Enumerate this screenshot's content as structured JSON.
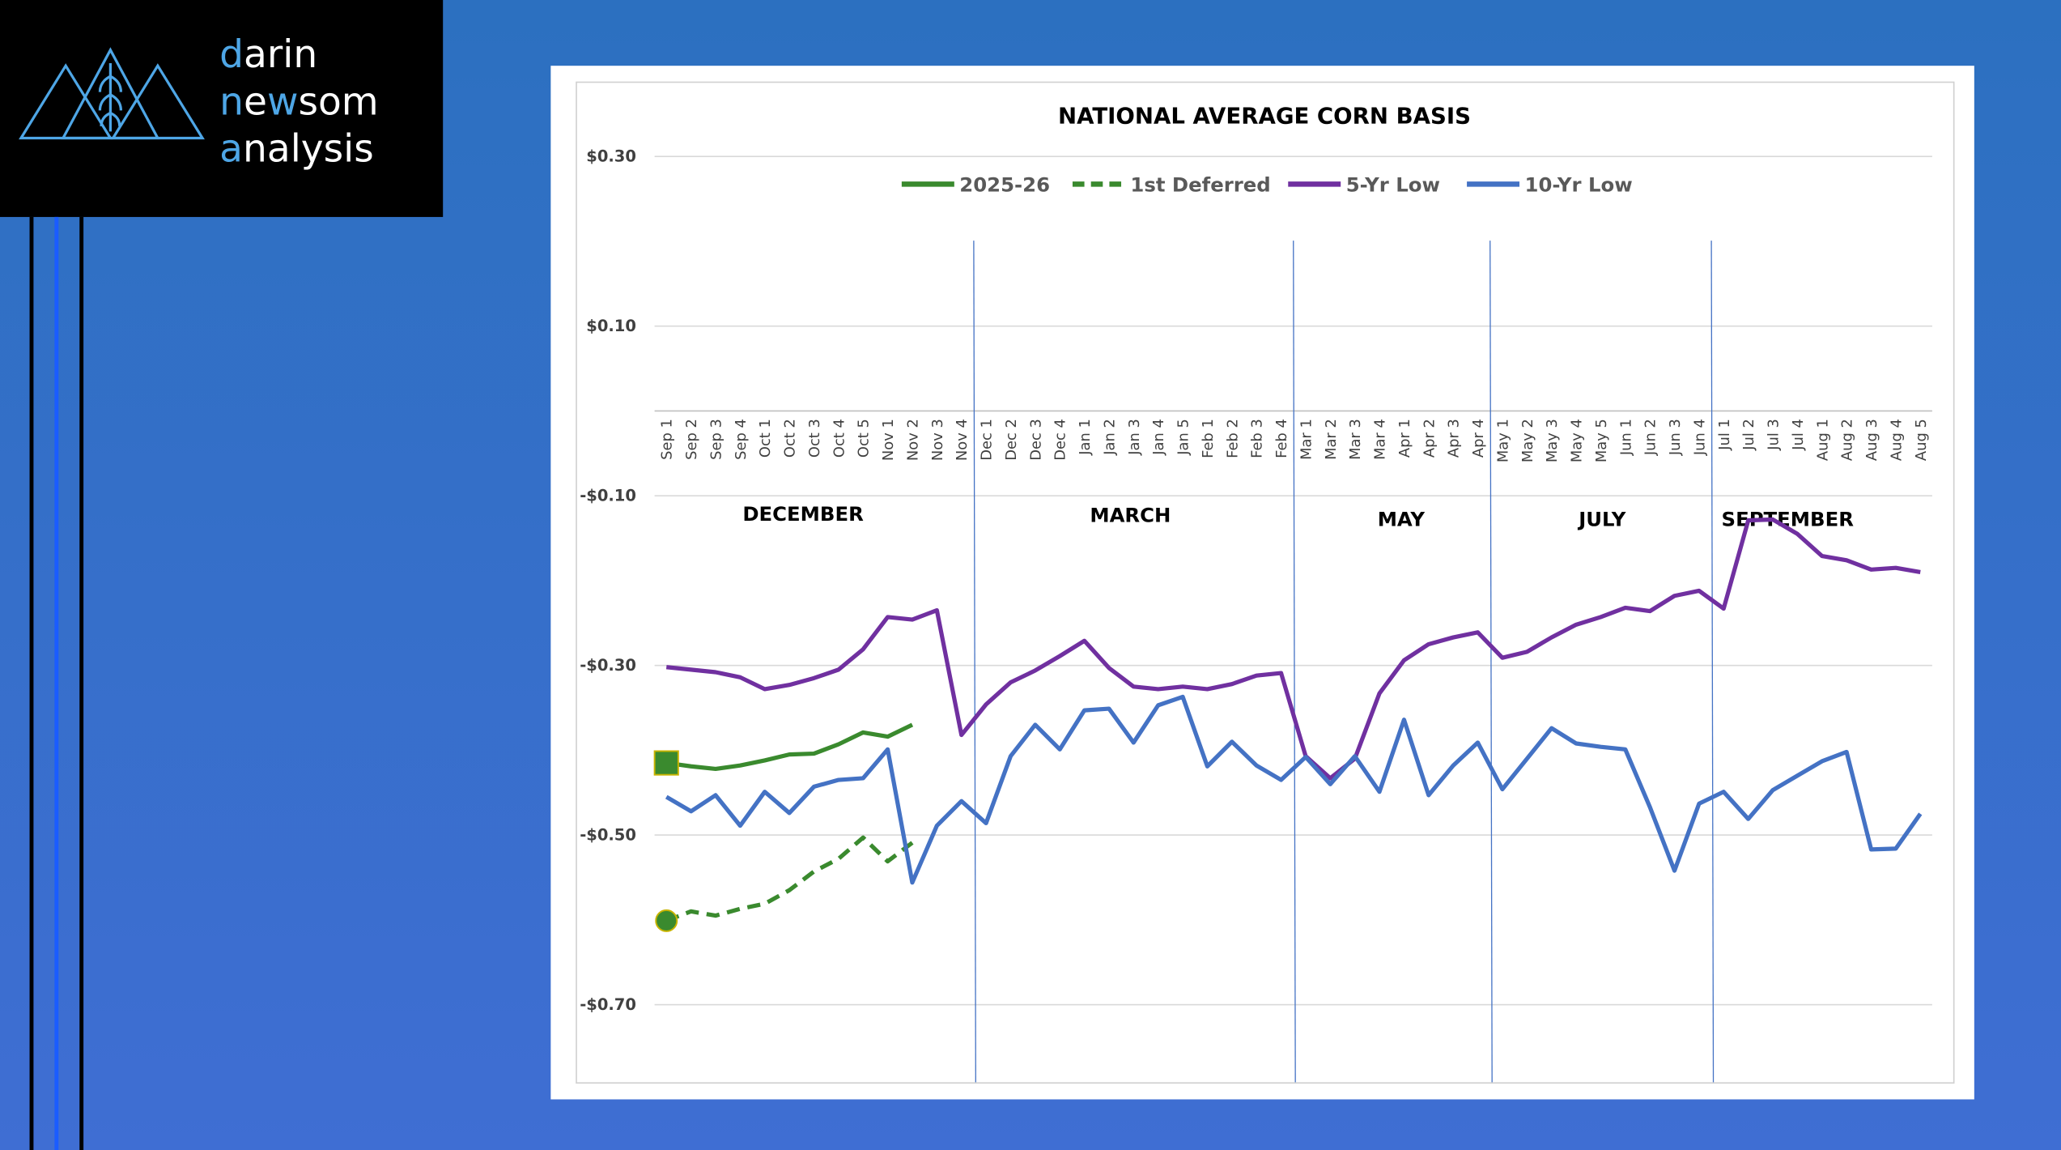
{
  "logo": [
    [
      "d",
      "arin"
    ],
    [
      "n",
      "e",
      "w",
      "som"
    ],
    [
      "a",
      "nalysis"
    ]
  ],
  "chart_data": {
    "type": "line",
    "title": "NATIONAL AVERAGE CORN BASIS",
    "categories": [
      "Sep 1",
      "Sep 2",
      "Sep 3",
      "Sep 4",
      "Oct 1",
      "Oct 2",
      "Oct 3",
      "Oct 4",
      "Oct 5",
      "Nov 1",
      "Nov 2",
      "Nov 3",
      "Nov 4",
      "Dec 1",
      "Dec 2",
      "Dec 3",
      "Dec 4",
      "Jan 1",
      "Jan 2",
      "Jan 3",
      "Jan 4",
      "Jan 5",
      "Feb 1",
      "Feb 2",
      "Feb 3",
      "Feb 4",
      "Mar 1",
      "Mar 2",
      "Mar 3",
      "Mar 4",
      "Apr 1",
      "Apr 2",
      "Apr 3",
      "Apr 4",
      "May 1",
      "May 2",
      "May 3",
      "May 4",
      "May 5",
      "Jun 1",
      "Jun 2",
      "Jun 3",
      "Jun 4",
      "Jul 1",
      "Jul 2",
      "Jul 3",
      "Jul 4",
      "Aug 1",
      "Aug 2",
      "Aug 3",
      "Aug 4",
      "Aug 5"
    ],
    "series": [
      {
        "name": "2025-26",
        "color": "#3a8a2e",
        "line_style": "solid",
        "marker": "square",
        "values": [
          -0.415,
          -0.419,
          -0.422,
          -0.418,
          -0.412,
          -0.405,
          -0.404,
          -0.393,
          -0.379,
          -0.384,
          -0.37,
          null,
          null,
          null,
          null,
          null,
          null,
          null,
          null,
          null,
          null,
          null,
          null,
          null,
          null,
          null,
          null,
          null,
          null,
          null,
          null,
          null,
          null,
          null,
          null,
          null,
          null,
          null,
          null,
          null,
          null,
          null,
          null,
          null,
          null,
          null,
          null,
          null,
          null,
          null,
          null,
          null
        ]
      },
      {
        "name": "1st Deferred",
        "color": "#3a8a2e",
        "line_style": "dashed",
        "marker": "circle",
        "values": [
          -0.601,
          -0.59,
          -0.595,
          -0.587,
          -0.581,
          -0.565,
          -0.543,
          -0.528,
          -0.503,
          -0.531,
          -0.509,
          null,
          null,
          null,
          null,
          null,
          null,
          null,
          null,
          null,
          null,
          null,
          null,
          null,
          null,
          null,
          null,
          null,
          null,
          null,
          null,
          null,
          null,
          null,
          null,
          null,
          null,
          null,
          null,
          null,
          null,
          null,
          null,
          null,
          null,
          null,
          null,
          null,
          null,
          null,
          null,
          null
        ]
      },
      {
        "name": "5-Yr Low",
        "color": "#7030a0",
        "line_style": "solid",
        "values": [
          -0.302,
          -0.305,
          -0.308,
          -0.314,
          -0.328,
          -0.323,
          -0.315,
          -0.305,
          -0.281,
          -0.243,
          -0.246,
          -0.235,
          -0.382,
          -0.346,
          -0.32,
          -0.306,
          -0.289,
          -0.271,
          -0.303,
          -0.325,
          -0.328,
          -0.325,
          -0.328,
          -0.322,
          -0.312,
          -0.309,
          -0.407,
          -0.433,
          -0.41,
          -0.333,
          -0.294,
          -0.275,
          -0.267,
          -0.261,
          -0.291,
          -0.284,
          -0.267,
          -0.252,
          -0.243,
          -0.232,
          -0.236,
          -0.218,
          -0.212,
          -0.233,
          -0.129,
          -0.128,
          -0.145,
          -0.171,
          -0.176,
          -0.187,
          -0.185,
          -0.19
        ]
      },
      {
        "name": "10-Yr Low",
        "color": "#4472c4",
        "line_style": "solid",
        "values": [
          -0.455,
          -0.472,
          -0.453,
          -0.489,
          -0.449,
          -0.474,
          -0.443,
          -0.435,
          -0.433,
          -0.399,
          -0.556,
          -0.489,
          -0.46,
          -0.486,
          -0.407,
          -0.37,
          -0.399,
          -0.353,
          -0.351,
          -0.391,
          -0.347,
          -0.337,
          -0.419,
          -0.39,
          -0.418,
          -0.435,
          -0.408,
          -0.44,
          -0.407,
          -0.449,
          -0.364,
          -0.453,
          -0.418,
          -0.391,
          -0.446,
          -0.41,
          -0.374,
          -0.392,
          -0.396,
          -0.399,
          -0.467,
          -0.542,
          -0.463,
          -0.449,
          -0.481,
          -0.447,
          -0.43,
          -0.413,
          -0.402,
          -0.517,
          -0.516,
          -0.475
        ]
      }
    ],
    "annotations": [
      "DECEMBER",
      "MARCH",
      "MAY",
      "JULY",
      "SEPTEMBER"
    ],
    "ylim": [
      -0.8,
      0.3
    ],
    "yticks": [
      {
        "value": 0.3,
        "label": "$0.30"
      },
      {
        "value": 0.1,
        "label": "$0.10"
      },
      {
        "value": -0.1,
        "label": "-$0.10"
      },
      {
        "value": -0.3,
        "label": "-$0.30"
      },
      {
        "value": -0.5,
        "label": "-$0.50"
      },
      {
        "value": -0.7,
        "label": "-$0.70"
      }
    ],
    "grid": true,
    "legend": "top"
  }
}
